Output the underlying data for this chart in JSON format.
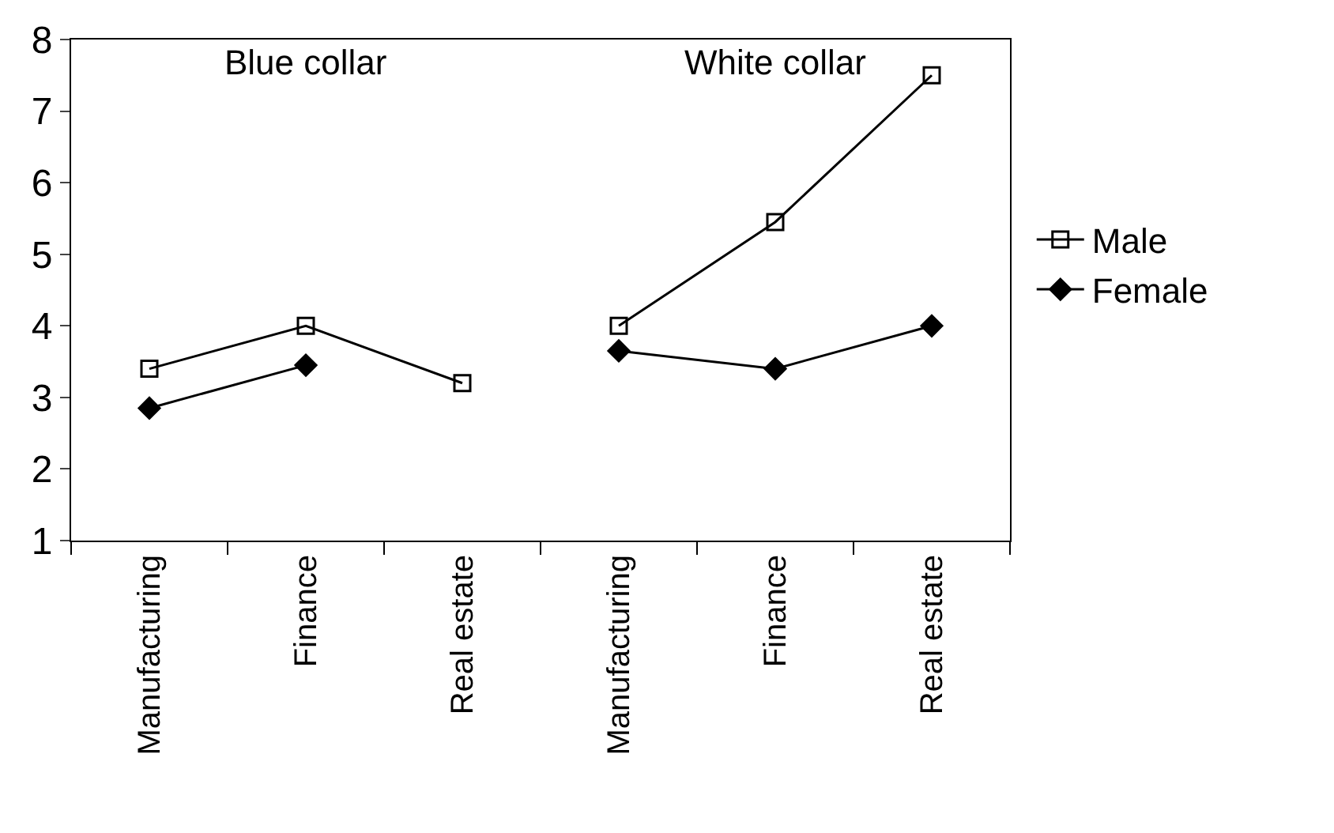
{
  "chart_data": {
    "type": "line",
    "categories": [
      "Manufacturing",
      "Finance",
      "Real estate",
      "Manufacturing",
      "Finance",
      "Real estate"
    ],
    "series": [
      {
        "name": "Male",
        "color": "#000000",
        "marker": "square",
        "values": [
          3.4,
          4.0,
          3.2,
          null,
          null,
          null
        ]
      },
      {
        "color": "#000000",
        "marker": "square",
        "values": [
          null,
          null,
          null,
          4.0,
          5.45,
          7.5
        ]
      },
      {
        "name": "Female",
        "color": "#000000",
        "marker": "diamond",
        "values": [
          2.85,
          3.45,
          null,
          3.65,
          3.4,
          4.0
        ]
      }
    ],
    "annotations": [
      "Blue collar",
      "White collar"
    ],
    "ylim": [
      1,
      8
    ],
    "yticks": [
      1,
      2,
      3,
      4,
      5,
      6,
      7,
      8
    ],
    "legend": "right",
    "line_style": "solid"
  }
}
